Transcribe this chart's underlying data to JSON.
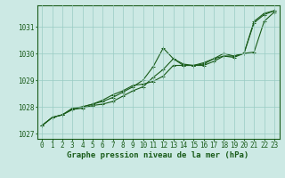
{
  "xlabel": "Graphe pression niveau de la mer (hPa)",
  "ylim": [
    1026.8,
    1031.8
  ],
  "xlim": [
    -0.5,
    23.5
  ],
  "yticks": [
    1027,
    1028,
    1029,
    1030,
    1031
  ],
  "xticks": [
    0,
    1,
    2,
    3,
    4,
    5,
    6,
    7,
    8,
    9,
    10,
    11,
    12,
    13,
    14,
    15,
    16,
    17,
    18,
    19,
    20,
    21,
    22,
    23
  ],
  "bg_color": "#cce9e4",
  "grid_color": "#99ccc4",
  "line_color": "#1a5c1a",
  "series": [
    [
      1027.3,
      1027.6,
      1027.7,
      1027.9,
      1028.0,
      1028.1,
      1028.2,
      1028.35,
      1028.55,
      1028.75,
      1029.0,
      1029.5,
      1030.2,
      1029.8,
      1029.6,
      1029.55,
      1029.55,
      1029.7,
      1029.9,
      1029.85,
      1030.0,
      1031.2,
      1031.5,
      1031.6
    ],
    [
      1027.3,
      1027.6,
      1027.7,
      1027.9,
      1027.95,
      1028.05,
      1028.1,
      1028.2,
      1028.4,
      1028.6,
      1028.75,
      1029.1,
      1029.4,
      1029.8,
      1029.55,
      1029.55,
      1029.6,
      1029.8,
      1029.9,
      1029.9,
      1030.0,
      1030.05,
      1031.2,
      1031.55
    ],
    [
      1027.3,
      1027.6,
      1027.7,
      1027.95,
      1028.0,
      1028.1,
      1028.25,
      1028.45,
      1028.6,
      1028.8,
      1028.85,
      1028.95,
      1029.15,
      1029.55,
      1029.55,
      1029.55,
      1029.65,
      1029.8,
      1030.0,
      1029.9,
      1030.0,
      1031.15,
      1031.45,
      1031.6
    ]
  ],
  "marker": "+",
  "marker_size": 3,
  "line_width": 0.8,
  "font_color": "#1a5c1a",
  "tick_fontsize": 5.5,
  "label_fontsize": 6.5
}
